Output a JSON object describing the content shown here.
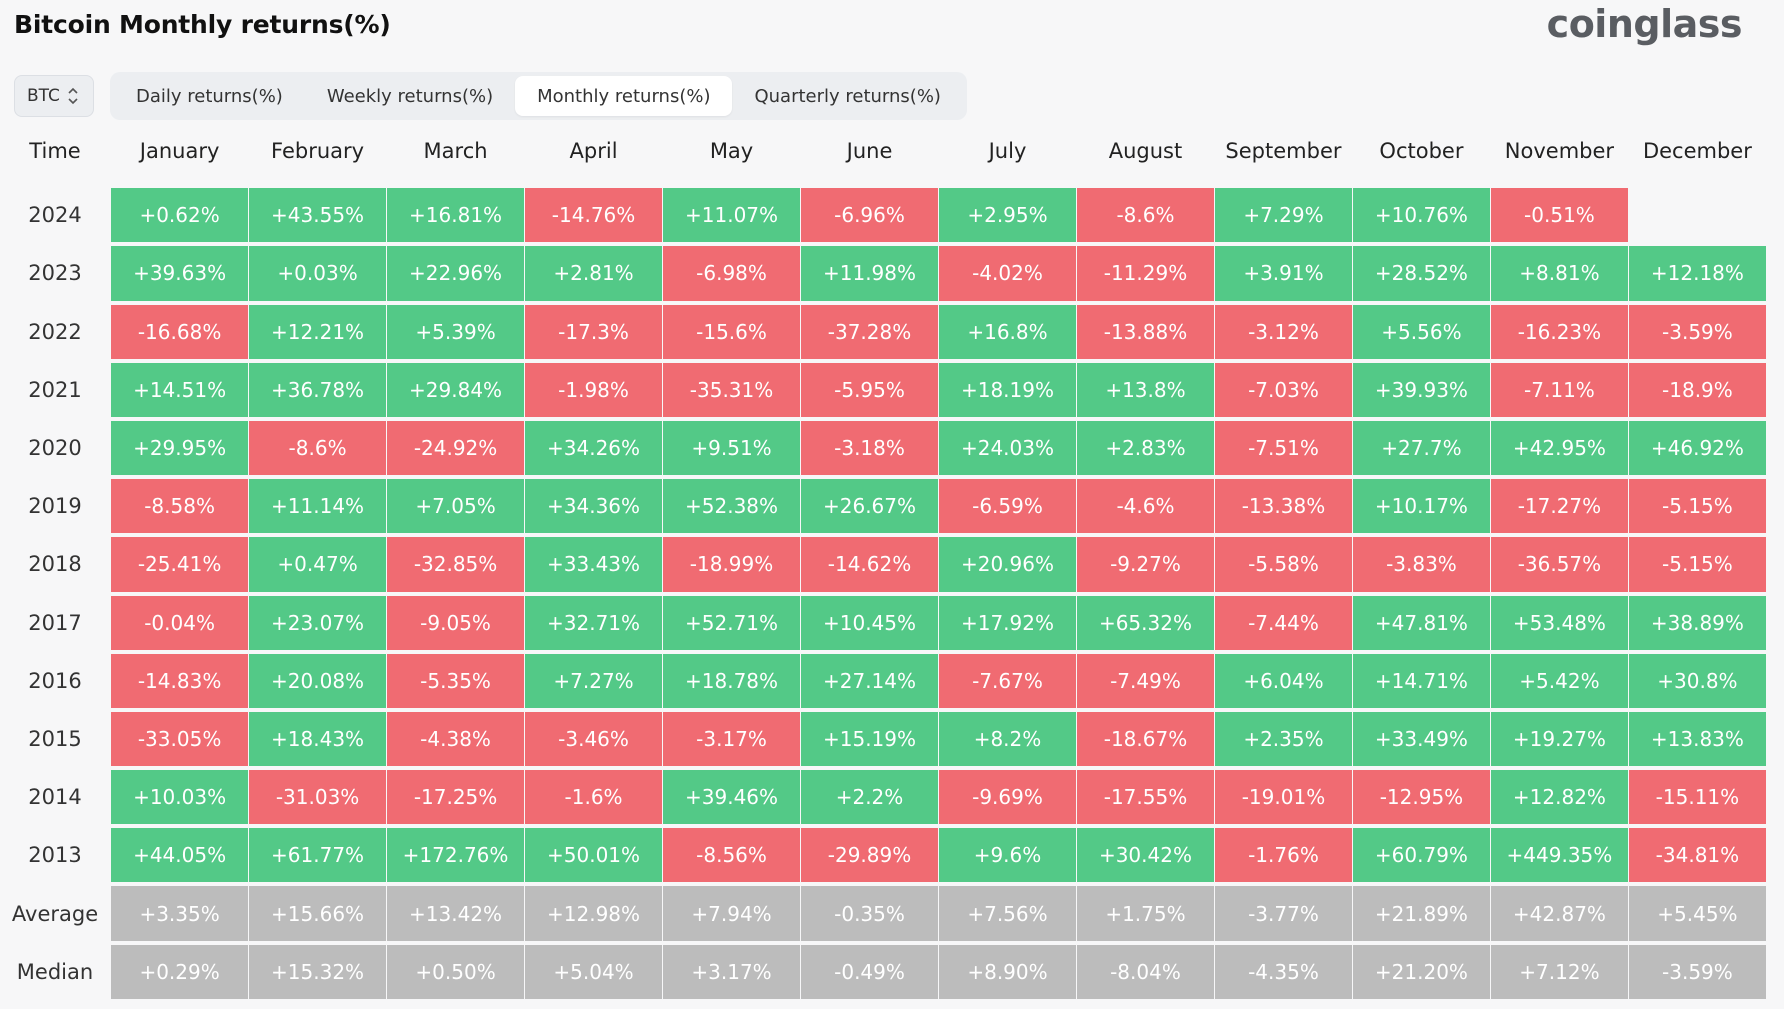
{
  "title": "Bitcoin Monthly returns(%)",
  "brand": "coinglass",
  "coin_select": {
    "value": "BTC"
  },
  "tabs": [
    {
      "label": "Daily returns(%)",
      "active": false
    },
    {
      "label": "Weekly returns(%)",
      "active": false
    },
    {
      "label": "Monthly returns(%)",
      "active": true
    },
    {
      "label": "Quarterly returns(%)",
      "active": false
    }
  ],
  "colors": {
    "positive": "#53c987",
    "negative": "#f06b72",
    "stat": "#bcbcbc"
  },
  "chart_data": {
    "type": "table",
    "corner_label": "Time",
    "columns": [
      "January",
      "February",
      "March",
      "April",
      "May",
      "June",
      "July",
      "August",
      "September",
      "October",
      "November",
      "December"
    ],
    "rows": [
      {
        "label": "2024",
        "values": [
          "+0.62%",
          "+43.55%",
          "+16.81%",
          "-14.76%",
          "+11.07%",
          "-6.96%",
          "+2.95%",
          "-8.6%",
          "+7.29%",
          "+10.76%",
          "-0.51%",
          ""
        ]
      },
      {
        "label": "2023",
        "values": [
          "+39.63%",
          "+0.03%",
          "+22.96%",
          "+2.81%",
          "-6.98%",
          "+11.98%",
          "-4.02%",
          "-11.29%",
          "+3.91%",
          "+28.52%",
          "+8.81%",
          "+12.18%"
        ]
      },
      {
        "label": "2022",
        "values": [
          "-16.68%",
          "+12.21%",
          "+5.39%",
          "-17.3%",
          "-15.6%",
          "-37.28%",
          "+16.8%",
          "-13.88%",
          "-3.12%",
          "+5.56%",
          "-16.23%",
          "-3.59%"
        ]
      },
      {
        "label": "2021",
        "values": [
          "+14.51%",
          "+36.78%",
          "+29.84%",
          "-1.98%",
          "-35.31%",
          "-5.95%",
          "+18.19%",
          "+13.8%",
          "-7.03%",
          "+39.93%",
          "-7.11%",
          "-18.9%"
        ]
      },
      {
        "label": "2020",
        "values": [
          "+29.95%",
          "-8.6%",
          "-24.92%",
          "+34.26%",
          "+9.51%",
          "-3.18%",
          "+24.03%",
          "+2.83%",
          "-7.51%",
          "+27.7%",
          "+42.95%",
          "+46.92%"
        ]
      },
      {
        "label": "2019",
        "values": [
          "-8.58%",
          "+11.14%",
          "+7.05%",
          "+34.36%",
          "+52.38%",
          "+26.67%",
          "-6.59%",
          "-4.6%",
          "-13.38%",
          "+10.17%",
          "-17.27%",
          "-5.15%"
        ]
      },
      {
        "label": "2018",
        "values": [
          "-25.41%",
          "+0.47%",
          "-32.85%",
          "+33.43%",
          "-18.99%",
          "-14.62%",
          "+20.96%",
          "-9.27%",
          "-5.58%",
          "-3.83%",
          "-36.57%",
          "-5.15%"
        ]
      },
      {
        "label": "2017",
        "values": [
          "-0.04%",
          "+23.07%",
          "-9.05%",
          "+32.71%",
          "+52.71%",
          "+10.45%",
          "+17.92%",
          "+65.32%",
          "-7.44%",
          "+47.81%",
          "+53.48%",
          "+38.89%"
        ]
      },
      {
        "label": "2016",
        "values": [
          "-14.83%",
          "+20.08%",
          "-5.35%",
          "+7.27%",
          "+18.78%",
          "+27.14%",
          "-7.67%",
          "-7.49%",
          "+6.04%",
          "+14.71%",
          "+5.42%",
          "+30.8%"
        ]
      },
      {
        "label": "2015",
        "values": [
          "-33.05%",
          "+18.43%",
          "-4.38%",
          "-3.46%",
          "-3.17%",
          "+15.19%",
          "+8.2%",
          "-18.67%",
          "+2.35%",
          "+33.49%",
          "+19.27%",
          "+13.83%"
        ]
      },
      {
        "label": "2014",
        "values": [
          "+10.03%",
          "-31.03%",
          "-17.25%",
          "-1.6%",
          "+39.46%",
          "+2.2%",
          "-9.69%",
          "-17.55%",
          "-19.01%",
          "-12.95%",
          "+12.82%",
          "-15.11%"
        ]
      },
      {
        "label": "2013",
        "values": [
          "+44.05%",
          "+61.77%",
          "+172.76%",
          "+50.01%",
          "-8.56%",
          "-29.89%",
          "+9.6%",
          "+30.42%",
          "-1.76%",
          "+60.79%",
          "+449.35%",
          "-34.81%"
        ]
      }
    ],
    "summary_rows": [
      {
        "label": "Average",
        "values": [
          "+3.35%",
          "+15.66%",
          "+13.42%",
          "+12.98%",
          "+7.94%",
          "-0.35%",
          "+7.56%",
          "+1.75%",
          "-3.77%",
          "+21.89%",
          "+42.87%",
          "+5.45%"
        ]
      },
      {
        "label": "Median",
        "values": [
          "+0.29%",
          "+15.32%",
          "+0.50%",
          "+5.04%",
          "+3.17%",
          "-0.49%",
          "+8.90%",
          "-8.04%",
          "-4.35%",
          "+21.20%",
          "+7.12%",
          "-3.59%"
        ]
      }
    ]
  }
}
